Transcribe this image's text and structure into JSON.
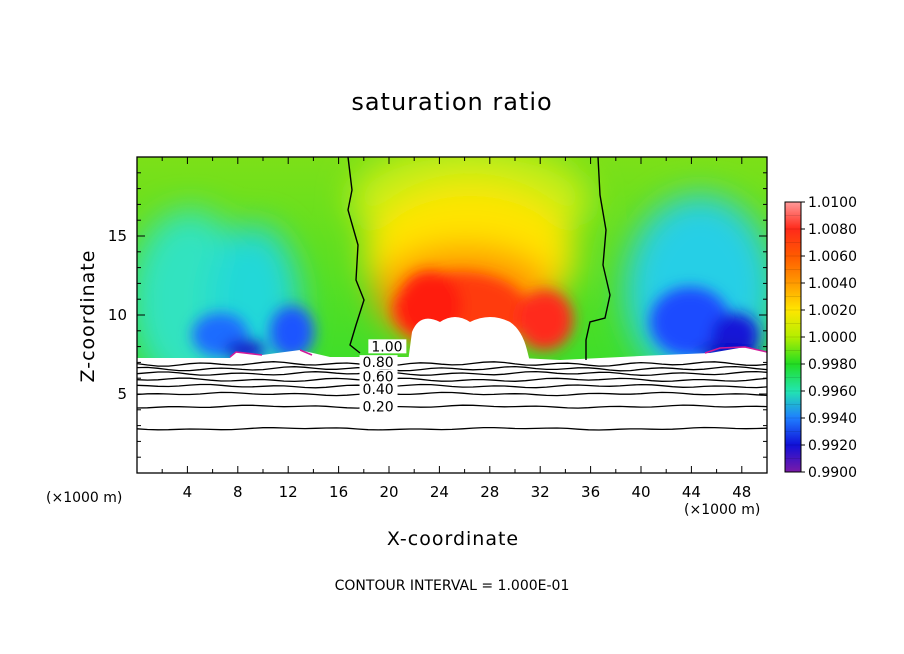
{
  "chart_data": {
    "type": "heatmap",
    "title": "saturation ratio",
    "xlabel": "X-coordinate",
    "ylabel": "Z-coordinate",
    "x_unit": "(×1000 m)",
    "xlim": [
      0,
      50
    ],
    "ylim": [
      0,
      20
    ],
    "x_ticks": [
      4,
      8,
      12,
      16,
      20,
      24,
      28,
      32,
      36,
      40,
      44,
      48
    ],
    "y_ticks": [
      5,
      10,
      15
    ],
    "colorbar": {
      "levels": [
        "1.0100",
        "1.0080",
        "1.0060",
        "1.0040",
        "1.0020",
        "1.0000",
        "0.9980",
        "0.9960",
        "0.9940",
        "0.9920",
        "0.9900"
      ],
      "colors": [
        "#ff9a9a",
        "#ff2a1a",
        "#ff5a00",
        "#ff9a00",
        "#ffe600",
        "#b4ee00",
        "#22dd22",
        "#22e6b0",
        "#1f7eff",
        "#1010d8",
        "#7a1aa8"
      ]
    },
    "contour_labels": [
      {
        "text": "1.00",
        "x": 18.6,
        "z": 7.7
      },
      {
        "text": "0.80",
        "x": 17.9,
        "z": 6.7
      },
      {
        "text": "0.60",
        "x": 17.9,
        "z": 5.8
      },
      {
        "text": "0.40",
        "x": 17.9,
        "z": 5.0
      },
      {
        "text": "0.20",
        "x": 17.9,
        "z": 3.9
      }
    ],
    "contour_lines_z": [
      2.8,
      4.2,
      5.0,
      5.5,
      5.9,
      6.3,
      6.6,
      6.9
    ],
    "cloud_base_z": 7.2,
    "grid": false,
    "legend": "right"
  },
  "footer_text": "CONTOUR INTERVAL = 1.000E-01"
}
